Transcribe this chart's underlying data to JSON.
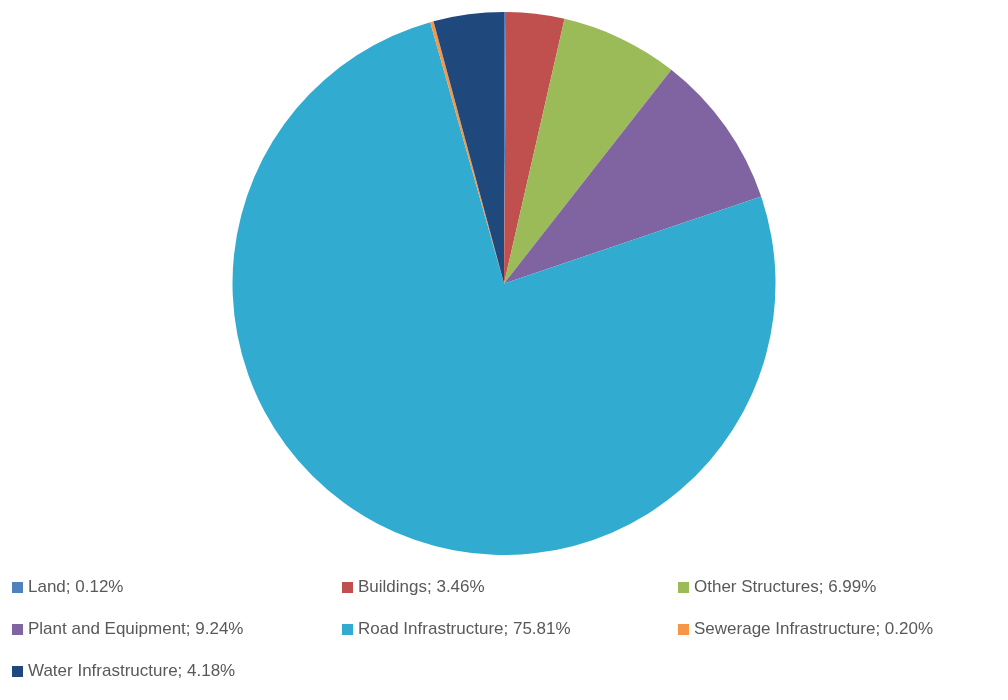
{
  "chart_data": {
    "type": "pie",
    "categories": [
      "Land; 0.12%",
      "Buildings; 3.46%",
      "Other Structures; 6.99%",
      "Plant and Equipment; 9.24%",
      "Road Infrastructure; 75.81%",
      "Sewerage Infrastructure; 0.20%",
      "Water Infrastructure; 4.18%"
    ],
    "values": [
      0.12,
      3.46,
      6.99,
      9.24,
      75.81,
      0.2,
      4.18
    ],
    "colors": [
      "#4f81bd",
      "#c0504d",
      "#9bbb59",
      "#8064a2",
      "#31acd0",
      "#f79646",
      "#1f497d"
    ],
    "legend": "bottom"
  }
}
